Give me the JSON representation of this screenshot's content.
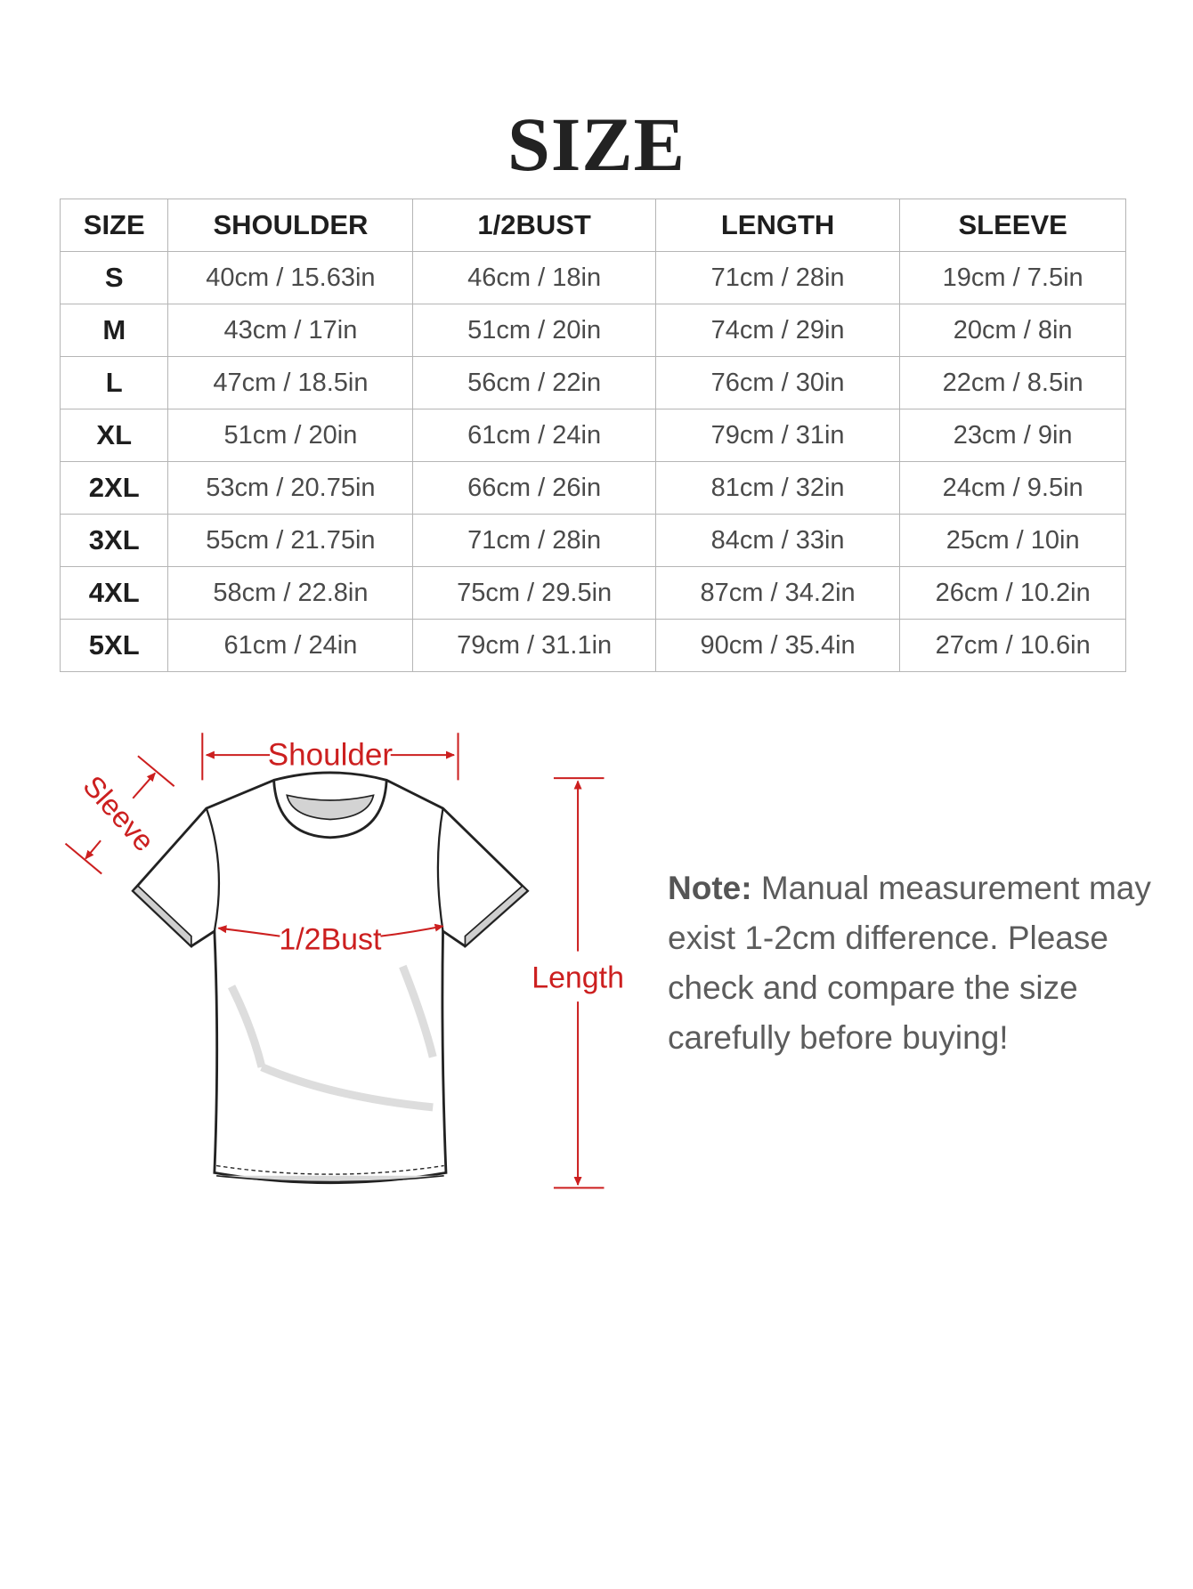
{
  "title": "SIZE",
  "table": {
    "headers": [
      "SIZE",
      "SHOULDER",
      "1/2BUST",
      "LENGTH",
      "SLEEVE"
    ],
    "rows": [
      [
        "S",
        "40cm / 15.63in",
        "46cm / 18in",
        "71cm / 28in",
        "19cm / 7.5in"
      ],
      [
        "M",
        "43cm / 17in",
        "51cm / 20in",
        "74cm / 29in",
        "20cm / 8in"
      ],
      [
        "L",
        "47cm / 18.5in",
        "56cm / 22in",
        "76cm / 30in",
        "22cm / 8.5in"
      ],
      [
        "XL",
        "51cm / 20in",
        "61cm / 24in",
        "79cm / 31in",
        "23cm / 9in"
      ],
      [
        "2XL",
        "53cm / 20.75in",
        "66cm / 26in",
        "81cm / 32in",
        "24cm / 9.5in"
      ],
      [
        "3XL",
        "55cm / 21.75in",
        "71cm / 28in",
        "84cm / 33in",
        "25cm / 10in"
      ],
      [
        "4XL",
        "58cm / 22.8in",
        "75cm / 29.5in",
        "87cm / 34.2in",
        "26cm / 10.2in"
      ],
      [
        "5XL",
        "61cm / 24in",
        "79cm / 31.1in",
        "90cm / 35.4in",
        "27cm / 10.6in"
      ]
    ]
  },
  "diagram": {
    "shoulder_label": "Shoulder",
    "sleeve_label": "Sleeve",
    "bust_label": "1/2Bust",
    "length_label": "Length",
    "accent_color": "#cc1f1f"
  },
  "note": {
    "label": "Note:",
    "text": "Manual measurement may exist 1-2cm difference. Please check and compare the size carefully before buying!"
  }
}
